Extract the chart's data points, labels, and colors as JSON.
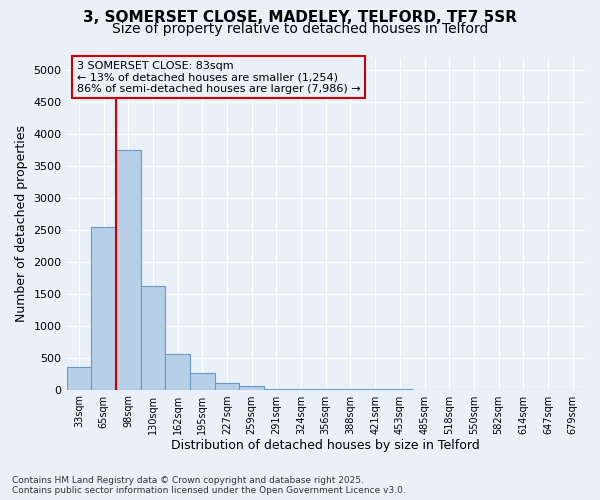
{
  "title1": "3, SOMERSET CLOSE, MADELEY, TELFORD, TF7 5SR",
  "title2": "Size of property relative to detached houses in Telford",
  "xlabel": "Distribution of detached houses by size in Telford",
  "ylabel": "Number of detached properties",
  "categories": [
    "33sqm",
    "65sqm",
    "98sqm",
    "130sqm",
    "162sqm",
    "195sqm",
    "227sqm",
    "259sqm",
    "291sqm",
    "324sqm",
    "356sqm",
    "388sqm",
    "421sqm",
    "453sqm",
    "485sqm",
    "518sqm",
    "550sqm",
    "582sqm",
    "614sqm",
    "647sqm",
    "679sqm"
  ],
  "values": [
    350,
    2550,
    3750,
    1620,
    550,
    260,
    110,
    60,
    10,
    5,
    3,
    2,
    2,
    2,
    1,
    1,
    0,
    0,
    0,
    0,
    0
  ],
  "bar_color": "#b8cfe8",
  "bar_edge_color": "#6699cc",
  "red_line_x": 1.5,
  "annotation_line1": "3 SOMERSET CLOSE: 83sqm",
  "annotation_line2": "← 13% of detached houses are smaller (1,254)",
  "annotation_line3": "86% of semi-detached houses are larger (7,986) →",
  "box_color": "#cc0000",
  "ylim": [
    0,
    5200
  ],
  "yticks": [
    0,
    500,
    1000,
    1500,
    2000,
    2500,
    3000,
    3500,
    4000,
    4500,
    5000
  ],
  "footer1": "Contains HM Land Registry data © Crown copyright and database right 2025.",
  "footer2": "Contains public sector information licensed under the Open Government Licence v3.0.",
  "bg_color": "#eaf0f8",
  "grid_color": "#ffffff",
  "title1_fontsize": 11,
  "title2_fontsize": 10,
  "axis_label_fontsize": 9,
  "tick_fontsize": 8,
  "annot_fontsize": 8
}
